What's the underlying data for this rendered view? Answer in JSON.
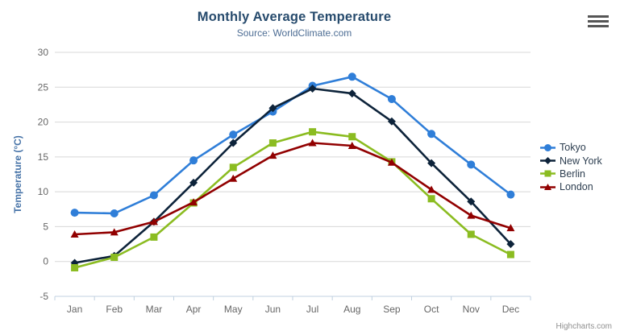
{
  "credits": {
    "label": "Highcharts.com"
  },
  "export_menu": {
    "icon": "hamburger-icon"
  },
  "colors": {
    "title": "#274b6d",
    "subtitle": "#4d6d94",
    "axis_title": "#4572a7",
    "tick_label": "#666666",
    "grid_line": "#d8d8d8",
    "axis_line": "#c0d0e0",
    "legend_text": "#2d3e50",
    "credits_text": "#909090"
  },
  "chart_data": {
    "type": "line",
    "title": "Monthly Average Temperature",
    "subtitle": "Source: WorldClimate.com",
    "categories": [
      "Jan",
      "Feb",
      "Mar",
      "Apr",
      "May",
      "Jun",
      "Jul",
      "Aug",
      "Sep",
      "Oct",
      "Nov",
      "Dec"
    ],
    "xlabel": "",
    "ylabel": "Temperature (°C)",
    "ylim": [
      -5,
      30
    ],
    "ytick_step": 5,
    "grid": true,
    "legend_position": "right",
    "series": [
      {
        "name": "Tokyo",
        "color": "#2f7ed8",
        "marker": "circle",
        "values": [
          7.0,
          6.9,
          9.5,
          14.5,
          18.2,
          21.5,
          25.2,
          26.5,
          23.3,
          18.3,
          13.9,
          9.6
        ]
      },
      {
        "name": "New York",
        "color": "#0d233a",
        "marker": "diamond",
        "values": [
          -0.2,
          0.8,
          5.7,
          11.3,
          17.0,
          22.0,
          24.8,
          24.1,
          20.1,
          14.1,
          8.6,
          2.5
        ]
      },
      {
        "name": "Berlin",
        "color": "#8bbc21",
        "marker": "square",
        "values": [
          -0.9,
          0.6,
          3.5,
          8.4,
          13.5,
          17.0,
          18.6,
          17.9,
          14.3,
          9.0,
          3.9,
          1.0
        ]
      },
      {
        "name": "London",
        "color": "#910000",
        "marker": "triangle",
        "values": [
          3.9,
          4.2,
          5.7,
          8.5,
          11.9,
          15.2,
          17.0,
          16.6,
          14.2,
          10.3,
          6.6,
          4.8
        ]
      }
    ]
  }
}
